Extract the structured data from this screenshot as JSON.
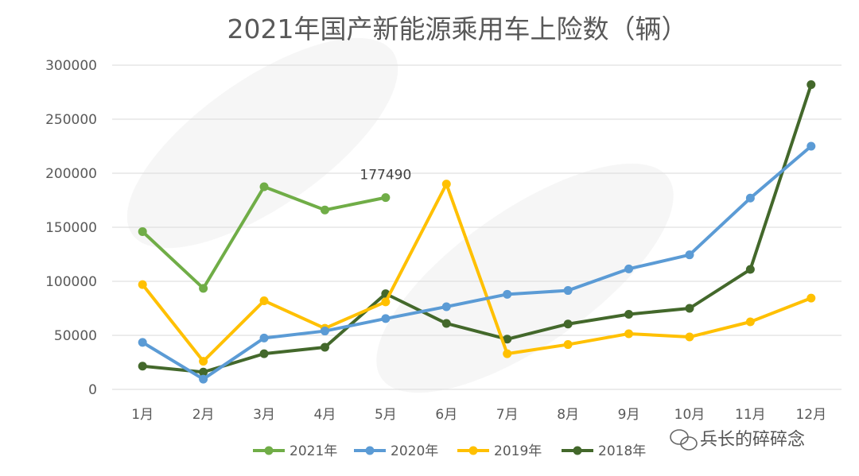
{
  "chart_data": {
    "type": "line",
    "title": "2021年国产新能源乘用车上险数（辆）",
    "categories": [
      "1月",
      "2月",
      "3月",
      "4月",
      "5月",
      "6月",
      "7月",
      "8月",
      "9月",
      "10月",
      "11月",
      "12月"
    ],
    "ylim": [
      0,
      300000
    ],
    "yticks": [
      0,
      50000,
      100000,
      150000,
      200000,
      250000,
      300000
    ],
    "ytick_labels": [
      "0",
      "50000",
      "100000",
      "150000",
      "200000",
      "250000",
      "300000"
    ],
    "grid": true,
    "legend_position": "bottom",
    "series": [
      {
        "name": "2021年",
        "color": "#70ad47",
        "values": [
          146000,
          93500,
          187500,
          166000,
          177490,
          null,
          null,
          null,
          null,
          null,
          null,
          null
        ]
      },
      {
        "name": "2020年",
        "color": "#5b9bd5",
        "values": [
          43500,
          9500,
          47500,
          54000,
          65500,
          76500,
          88000,
          91500,
          111500,
          124500,
          177000,
          225000
        ]
      },
      {
        "name": "2019年",
        "color": "#ffc000",
        "values": [
          97000,
          26000,
          82000,
          56500,
          81000,
          190000,
          33000,
          41500,
          51500,
          48500,
          62500,
          84500
        ]
      },
      {
        "name": "2018年",
        "color": "#43682b",
        "values": [
          21500,
          16000,
          33000,
          39000,
          88500,
          61000,
          46500,
          60500,
          69500,
          75000,
          111000,
          282000
        ]
      }
    ],
    "annotations": [
      {
        "series": "2021年",
        "index": 4,
        "text": "177490"
      }
    ]
  },
  "watermark": {
    "text": "兵长的碎碎念",
    "icon": "wechat-icon"
  }
}
